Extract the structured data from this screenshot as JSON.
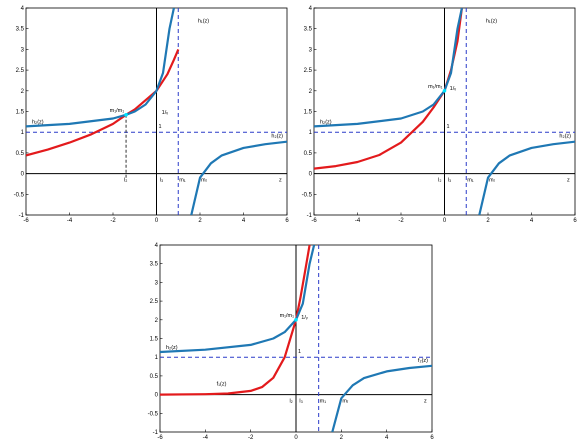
{
  "chart_data": [
    {
      "type": "line",
      "xlim": [
        -6,
        6
      ],
      "ylim": [
        -1,
        4
      ],
      "xticks": [
        -6,
        -4,
        -2,
        0,
        2,
        4,
        6
      ],
      "yticks": [
        -1,
        -0.5,
        0,
        0.5,
        1,
        1.5,
        2,
        2.5,
        3,
        3.5,
        4
      ],
      "xtick_labels": [
        "-6",
        "-4",
        "-2",
        "0",
        "2",
        "4",
        "6"
      ],
      "ytick_labels": [
        "-1",
        "-0.5",
        "0",
        "0.5",
        "1",
        "1.5",
        "2",
        "2.5",
        "3",
        "3.5",
        "4"
      ],
      "grid": false,
      "colors": {
        "h1": "#e31a1c",
        "h2": "#1f78b4",
        "ref": "#2b3cc9"
      },
      "params": {
        "v": 1,
        "m_r": 2,
        "intersect": [
          -1.4,
          1.42
        ]
      },
      "series": [
        {
          "name": "h_1(z)",
          "x": [
            -6,
            -5,
            -4,
            -3,
            -2,
            -1.4,
            -1,
            0,
            0.5,
            0.8,
            1
          ],
          "y": [
            0.44,
            0.58,
            0.75,
            0.95,
            1.2,
            1.42,
            1.55,
            2.0,
            2.4,
            2.75,
            3.0
          ]
        },
        {
          "name": "h_2(z) left",
          "x": [
            -6,
            -4,
            -2,
            -1.4,
            -1,
            -0.5,
            0,
            0.3,
            0.6,
            0.8
          ],
          "y": [
            1.14,
            1.2,
            1.33,
            1.42,
            1.5,
            1.67,
            2.0,
            2.43,
            3.5,
            4.0
          ]
        },
        {
          "name": "h_2(z) right",
          "x": [
            1.6,
            2,
            2.5,
            3,
            4,
            5,
            6
          ],
          "y": [
            -1.0,
            -0.1,
            0.25,
            0.44,
            0.62,
            0.71,
            0.77
          ]
        }
      ],
      "annotations": {
        "h1_label": "h₁(z)",
        "h2_label": "h₂(z)",
        "h2r_label": "h₂(z)",
        "mm_label": "m₁/m₁",
        "inv_v_label": "1/ᵥ",
        "one_label": "1",
        "z_label": "z",
        "m1_label": "m₁",
        "mr_label": "mᵣ",
        "l2_label": "l₂",
        "l3_label": "l₃"
      }
    },
    {
      "type": "line",
      "xlim": [
        -6,
        6
      ],
      "ylim": [
        -1,
        4
      ],
      "xticks": [
        -6,
        -4,
        -2,
        0,
        2,
        4,
        6
      ],
      "yticks": [
        -1,
        -0.5,
        0,
        0.5,
        1,
        1.5,
        2,
        2.5,
        3,
        3.5,
        4
      ],
      "xtick_labels": [
        "-6",
        "-4",
        "-2",
        "0",
        "2",
        "4",
        "6"
      ],
      "ytick_labels": [
        "-1",
        "-0.5",
        "0",
        "0.5",
        "1",
        "1.5",
        "2",
        "2.5",
        "3",
        "3.5",
        "4"
      ],
      "grid": false,
      "colors": {
        "h1": "#e31a1c",
        "h2": "#1f78b4",
        "ref": "#2b3cc9"
      },
      "params": {
        "v": 1,
        "m_r": 2,
        "intersect": [
          0,
          2.0
        ]
      },
      "series": [
        {
          "name": "h_1(z)",
          "x": [
            -6,
            -5,
            -4,
            -3,
            -2,
            -1,
            -0.5,
            0,
            0.3,
            0.6,
            0.8
          ],
          "y": [
            0.12,
            0.18,
            0.28,
            0.45,
            0.75,
            1.25,
            1.6,
            2.0,
            2.5,
            3.2,
            4.0
          ]
        },
        {
          "name": "h_2(z) left",
          "x": [
            -6,
            -4,
            -2,
            -1,
            -0.5,
            0,
            0.3,
            0.6,
            0.8
          ],
          "y": [
            1.14,
            1.2,
            1.33,
            1.5,
            1.67,
            2.0,
            2.43,
            3.5,
            4.0
          ]
        },
        {
          "name": "h_2(z) right",
          "x": [
            1.6,
            2,
            2.5,
            3,
            4,
            5,
            6
          ],
          "y": [
            -1.0,
            -0.1,
            0.25,
            0.44,
            0.62,
            0.71,
            0.77
          ]
        }
      ],
      "annotations": {
        "h1_label": "h₁(z)",
        "h2_label": "h₂(z)",
        "h2r_label": "h₂(z)",
        "mm_label": "m₁/m₁",
        "inv_v_label": "1/ᵥ",
        "one_label": "1",
        "z_label": "z",
        "m1_label": "m₁",
        "mr_label": "mᵣ",
        "l2_label": "l₂",
        "l3_label": "l₃"
      }
    },
    {
      "type": "line",
      "xlim": [
        -6,
        6
      ],
      "ylim": [
        -1,
        4
      ],
      "xticks": [
        -6,
        -4,
        -2,
        0,
        2,
        4,
        6
      ],
      "yticks": [
        -1,
        -0.5,
        0,
        0.5,
        1,
        1.5,
        2,
        2.5,
        3,
        3.5,
        4
      ],
      "xtick_labels": [
        "-6",
        "-4",
        "-2",
        "0",
        "2",
        "4",
        "6"
      ],
      "ytick_labels": [
        "-1",
        "-0.5",
        "0",
        "0.5",
        "1",
        "1.5",
        "2",
        "2.5",
        "3",
        "3.5",
        "4"
      ],
      "grid": false,
      "colors": {
        "h1": "#e31a1c",
        "h2": "#1f78b4",
        "ref": "#2b3cc9"
      },
      "params": {
        "v": 1,
        "m_r": 2,
        "intersect": [
          0,
          2.0
        ]
      },
      "series": [
        {
          "name": "h_1(z)",
          "x": [
            -6,
            -4,
            -3,
            -2,
            -1.5,
            -1,
            -0.5,
            0,
            0.2,
            0.4,
            0.6
          ],
          "y": [
            0.0,
            0.01,
            0.03,
            0.1,
            0.2,
            0.45,
            1.0,
            2.0,
            2.6,
            3.3,
            4.0
          ]
        },
        {
          "name": "h_2(z) left",
          "x": [
            -6,
            -4,
            -2,
            -1,
            -0.5,
            0,
            0.3,
            0.6,
            0.8
          ],
          "y": [
            1.14,
            1.2,
            1.33,
            1.5,
            1.67,
            2.0,
            2.43,
            3.5,
            4.0
          ]
        },
        {
          "name": "h_2(z) right",
          "x": [
            1.6,
            2,
            2.5,
            3,
            4,
            5,
            6
          ],
          "y": [
            -1.0,
            -0.1,
            0.25,
            0.44,
            0.62,
            0.71,
            0.77
          ]
        }
      ],
      "annotations": {
        "h1_label": "f₁(z)",
        "h2_label": "h₂(z)",
        "h2r_label": "f₂(z)",
        "mm_label": "m₁/m₁",
        "inv_v_label": "1/ᵥ",
        "one_label": "1",
        "z_label": "z",
        "m1_label": "m₁",
        "mr_label": "mᵣ",
        "l2_label": "l₂",
        "l3_label": "l₃"
      }
    }
  ]
}
